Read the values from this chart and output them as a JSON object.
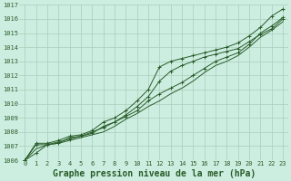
{
  "title": "Graphe pression niveau de la mer (hPa)",
  "background_color": "#cceee0",
  "grid_color": "#aaccbb",
  "line_color": "#2a5c2a",
  "ylim": [
    1006,
    1017
  ],
  "yticks": [
    1006,
    1007,
    1008,
    1009,
    1010,
    1011,
    1012,
    1013,
    1014,
    1015,
    1016,
    1017
  ],
  "x_labels": [
    "0",
    "1",
    "2",
    "3",
    "4",
    "5",
    "6",
    "7",
    "8",
    "9",
    "10",
    "11",
    "12",
    "13",
    "14",
    "15",
    "16",
    "17",
    "18",
    "19",
    "20",
    "21",
    "22",
    "23"
  ],
  "series": [
    [
      1006.0,
      1006.5,
      1007.1,
      1007.2,
      1007.6,
      1007.7,
      1008.0,
      1008.3,
      1008.7,
      1009.1,
      1009.5,
      1010.2,
      1010.7,
      1011.1,
      1011.5,
      1012.0,
      1012.5,
      1013.0,
      1013.3,
      1013.6,
      1014.2,
      1015.0,
      1015.5,
      1016.1
    ],
    [
      1006.0,
      1006.8,
      1007.1,
      1007.2,
      1007.4,
      1007.6,
      1007.8,
      1008.0,
      1008.4,
      1008.9,
      1009.3,
      1009.8,
      1010.2,
      1010.7,
      1011.1,
      1011.6,
      1012.2,
      1012.7,
      1013.0,
      1013.4,
      1014.0,
      1014.7,
      1015.2,
      1015.8
    ],
    [
      1006.0,
      1007.1,
      1007.1,
      1007.3,
      1007.5,
      1007.7,
      1007.9,
      1008.4,
      1008.7,
      1009.2,
      1009.8,
      1010.5,
      1011.6,
      1012.3,
      1012.7,
      1013.0,
      1013.3,
      1013.5,
      1013.7,
      1013.9,
      1014.4,
      1014.9,
      1015.3,
      1016.0
    ],
    [
      1006.0,
      1007.2,
      1007.2,
      1007.4,
      1007.7,
      1007.8,
      1008.1,
      1008.7,
      1009.0,
      1009.5,
      1010.2,
      1011.0,
      1012.6,
      1013.0,
      1013.2,
      1013.4,
      1013.6,
      1013.8,
      1014.0,
      1014.3,
      1014.8,
      1015.4,
      1016.2,
      1016.7
    ]
  ],
  "marker_series": [
    0,
    2,
    3
  ],
  "title_fontsize": 7.0,
  "tick_fontsize": 5.0
}
